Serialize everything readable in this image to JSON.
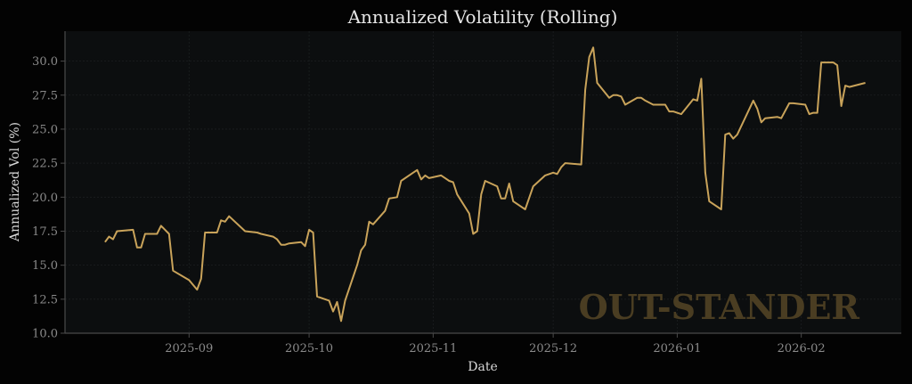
{
  "chart_data": {
    "type": "line",
    "title": "Annualized Volatility (Rolling)",
    "xlabel": "Date",
    "ylabel": "Annualized Vol (%)",
    "watermark": "OUT-STANDER",
    "xlim": [
      "2025-08-01",
      "2026-02-26"
    ],
    "ylim": [
      10.0,
      32.2
    ],
    "grid": true,
    "line_color": "#c9a35a",
    "background_color": "#030303",
    "plot_background_color": "#0c0e0f",
    "x_ticks": [
      {
        "date": "2025-09-01",
        "label": "2025-09"
      },
      {
        "date": "2025-10-01",
        "label": "2025-10"
      },
      {
        "date": "2025-11-01",
        "label": "2025-11"
      },
      {
        "date": "2025-12-01",
        "label": "2025-12"
      },
      {
        "date": "2026-01-01",
        "label": "2026-01"
      },
      {
        "date": "2026-02-01",
        "label": "2026-02"
      }
    ],
    "y_ticks": [
      {
        "value": 10.0,
        "label": "10.0"
      },
      {
        "value": 12.5,
        "label": "12.5"
      },
      {
        "value": 15.0,
        "label": "15.0"
      },
      {
        "value": 17.5,
        "label": "17.5"
      },
      {
        "value": 20.0,
        "label": "20.0"
      },
      {
        "value": 22.5,
        "label": "22.5"
      },
      {
        "value": 25.0,
        "label": "25.0"
      },
      {
        "value": 27.5,
        "label": "27.5"
      },
      {
        "value": 30.0,
        "label": "30.0"
      }
    ],
    "series": [
      {
        "name": "Annualized Vol",
        "x": [
          "2025-08-11",
          "2025-08-12",
          "2025-08-13",
          "2025-08-14",
          "2025-08-18",
          "2025-08-19",
          "2025-08-20",
          "2025-08-21",
          "2025-08-24",
          "2025-08-25",
          "2025-08-26",
          "2025-08-27",
          "2025-08-28",
          "2025-09-01",
          "2025-09-03",
          "2025-09-04",
          "2025-09-05",
          "2025-09-08",
          "2025-09-09",
          "2025-09-10",
          "2025-09-11",
          "2025-09-15",
          "2025-09-18",
          "2025-09-19",
          "2025-09-22",
          "2025-09-23",
          "2025-09-24",
          "2025-09-25",
          "2025-09-26",
          "2025-09-29",
          "2025-09-30",
          "2025-10-01",
          "2025-10-02",
          "2025-10-03",
          "2025-10-06",
          "2025-10-07",
          "2025-10-08",
          "2025-10-09",
          "2025-10-10",
          "2025-10-13",
          "2025-10-14",
          "2025-10-15",
          "2025-10-16",
          "2025-10-17",
          "2025-10-20",
          "2025-10-21",
          "2025-10-23",
          "2025-10-24",
          "2025-10-27",
          "2025-10-28",
          "2025-10-29",
          "2025-10-30",
          "2025-10-31",
          "2025-11-03",
          "2025-11-04",
          "2025-11-05",
          "2025-11-06",
          "2025-11-07",
          "2025-11-10",
          "2025-11-11",
          "2025-11-12",
          "2025-11-13",
          "2025-11-14",
          "2025-11-17",
          "2025-11-18",
          "2025-11-19",
          "2025-11-20",
          "2025-11-21",
          "2025-11-24",
          "2025-11-26",
          "2025-11-29",
          "2025-12-01",
          "2025-12-02",
          "2025-12-03",
          "2025-12-04",
          "2025-12-08",
          "2025-12-09",
          "2025-12-10",
          "2025-12-11",
          "2025-12-12",
          "2025-12-15",
          "2025-12-16",
          "2025-12-17",
          "2025-12-18",
          "2025-12-19",
          "2025-12-22",
          "2025-12-23",
          "2025-12-24",
          "2025-12-26",
          "2025-12-29",
          "2025-12-30",
          "2025-12-31",
          "2026-01-02",
          "2026-01-05",
          "2026-01-06",
          "2026-01-07",
          "2026-01-08",
          "2026-01-09",
          "2026-01-12",
          "2026-01-13",
          "2026-01-14",
          "2026-01-15",
          "2026-01-16",
          "2026-01-20",
          "2026-01-21",
          "2026-01-22",
          "2026-01-23",
          "2026-01-26",
          "2026-01-27",
          "2026-01-29",
          "2026-01-30",
          "2026-02-02",
          "2026-02-03",
          "2026-02-04",
          "2026-02-05",
          "2026-02-06",
          "2026-02-09",
          "2026-02-10",
          "2026-02-11",
          "2026-02-12",
          "2026-02-13",
          "2026-02-17"
        ],
        "values": [
          16.7,
          17.1,
          16.9,
          17.5,
          17.6,
          16.3,
          16.3,
          17.3,
          17.3,
          17.9,
          17.6,
          17.3,
          14.6,
          13.9,
          13.2,
          14.0,
          17.4,
          17.4,
          18.3,
          18.2,
          18.6,
          17.5,
          17.4,
          17.3,
          17.1,
          16.9,
          16.5,
          16.5,
          16.6,
          16.7,
          16.4,
          17.6,
          17.4,
          12.7,
          12.4,
          11.6,
          12.3,
          10.9,
          12.4,
          15.0,
          16.1,
          16.5,
          18.2,
          18.0,
          19.0,
          19.9,
          20.0,
          21.2,
          21.8,
          22.0,
          21.3,
          21.6,
          21.4,
          21.6,
          21.4,
          21.2,
          21.1,
          20.2,
          18.8,
          17.3,
          17.5,
          20.2,
          21.2,
          20.8,
          19.9,
          19.9,
          21.0,
          19.7,
          19.1,
          20.8,
          21.6,
          21.8,
          21.7,
          22.2,
          22.5,
          22.4,
          27.9,
          30.3,
          31.0,
          28.4,
          27.3,
          27.5,
          27.5,
          27.4,
          26.8,
          27.3,
          27.3,
          27.1,
          26.8,
          26.8,
          26.3,
          26.3,
          26.1,
          27.2,
          27.1,
          28.7,
          21.8,
          19.7,
          19.1,
          24.6,
          24.7,
          24.3,
          24.6,
          27.1,
          26.5,
          25.5,
          25.8,
          25.9,
          25.8,
          26.9,
          26.9,
          26.8,
          26.1,
          26.2,
          26.2,
          29.9,
          29.9,
          29.7,
          26.7,
          28.2,
          28.1,
          28.4
        ]
      }
    ]
  }
}
